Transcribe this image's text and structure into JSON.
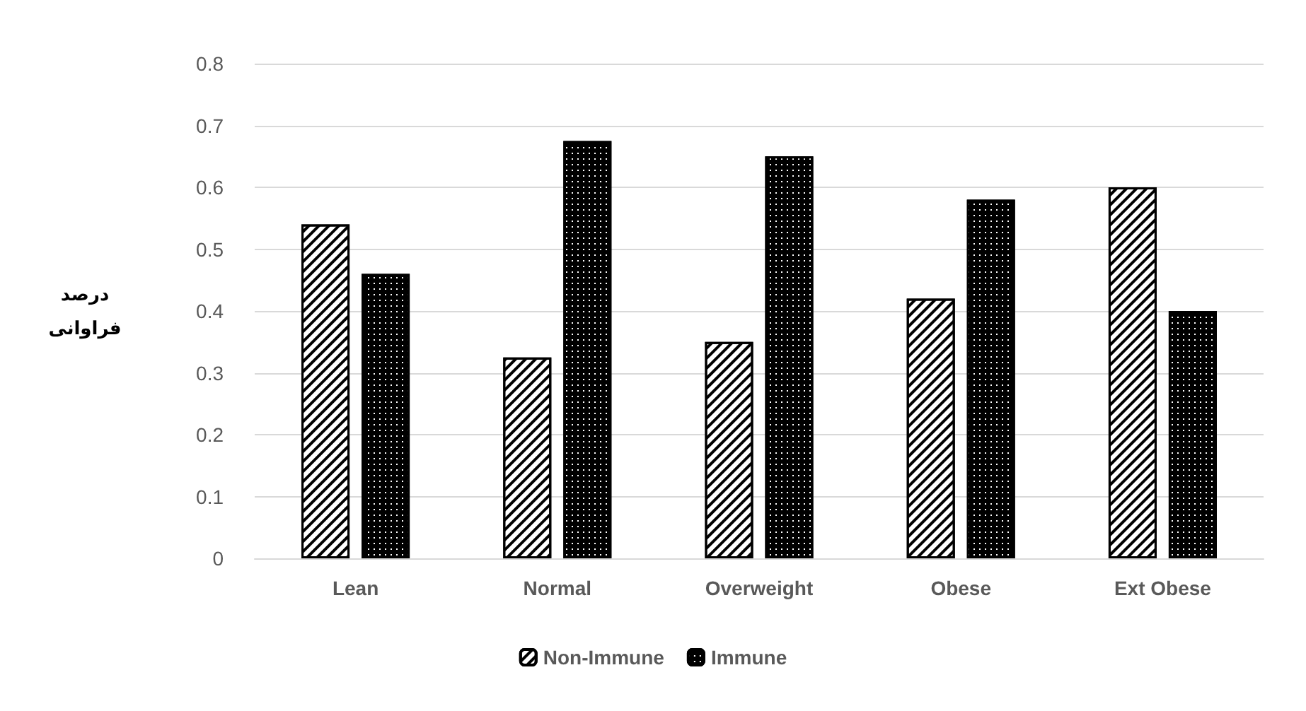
{
  "chart_data": {
    "type": "bar",
    "ylabel": "درصد فراوانی",
    "categories": [
      "Lean",
      "Normal",
      "Overweight",
      "Obese",
      "Ext Obese"
    ],
    "series": [
      {
        "name": "Non-Immune",
        "color": "#ffffff",
        "values": [
          0.54,
          0.325,
          0.35,
          0.42,
          0.6
        ]
      },
      {
        "name": "Immune",
        "color": "#000000",
        "values": [
          0.46,
          0.675,
          0.65,
          0.58,
          0.4
        ]
      }
    ],
    "ylim": [
      0,
      0.8
    ],
    "yticks": [
      0,
      0.1,
      0.2,
      0.3,
      0.4,
      0.5,
      0.6,
      0.7,
      0.8
    ],
    "grid": "y",
    "legend": "bottom"
  }
}
